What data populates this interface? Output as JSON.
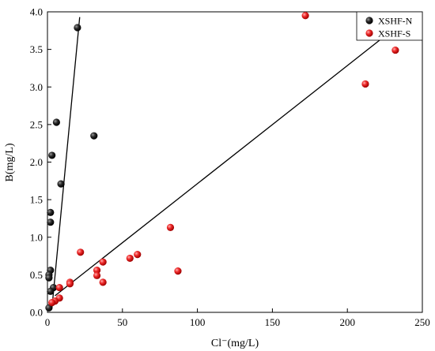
{
  "chart_data": {
    "type": "scatter",
    "xlabel": "Cl⁻(mg/L)",
    "ylabel": "B(mg/L)",
    "xlim": [
      0,
      250
    ],
    "ylim": [
      0,
      4.0
    ],
    "x_ticks": [
      0,
      50,
      100,
      150,
      200,
      250
    ],
    "y_ticks": [
      "0.0",
      "0.5",
      "1.0",
      "1.5",
      "2.0",
      "2.5",
      "3.0",
      "3.5",
      "4.0"
    ],
    "grid": false,
    "legend_position": "top-right",
    "series": [
      {
        "name": "XSHF-N",
        "color": "#000000",
        "points": [
          [
            20,
            3.79
          ],
          [
            6,
            2.53
          ],
          [
            31,
            2.35
          ],
          [
            3,
            2.09
          ],
          [
            9,
            1.71
          ],
          [
            2,
            1.33
          ],
          [
            2,
            1.2
          ],
          [
            2,
            0.56
          ],
          [
            1,
            0.5
          ],
          [
            1,
            0.46
          ],
          [
            4,
            0.33
          ],
          [
            2,
            0.28
          ],
          [
            1,
            0.06
          ]
        ],
        "fit_line": [
          [
            3,
            0.06
          ],
          [
            21.5,
            3.93
          ]
        ]
      },
      {
        "name": "XSHF-S",
        "color": "#e8191b",
        "points": [
          [
            172,
            3.95
          ],
          [
            232,
            3.49
          ],
          [
            212,
            3.04
          ],
          [
            82,
            1.13
          ],
          [
            22,
            0.8
          ],
          [
            60,
            0.77
          ],
          [
            55,
            0.72
          ],
          [
            37,
            0.67
          ],
          [
            33,
            0.56
          ],
          [
            87,
            0.55
          ],
          [
            33,
            0.49
          ],
          [
            37,
            0.4
          ],
          [
            15,
            0.4
          ],
          [
            15,
            0.38
          ],
          [
            8,
            0.33
          ],
          [
            8,
            0.19
          ],
          [
            5,
            0.15
          ],
          [
            3,
            0.13
          ]
        ],
        "fit_line": [
          [
            5,
            0.22
          ],
          [
            236,
            3.85
          ]
        ]
      }
    ]
  }
}
